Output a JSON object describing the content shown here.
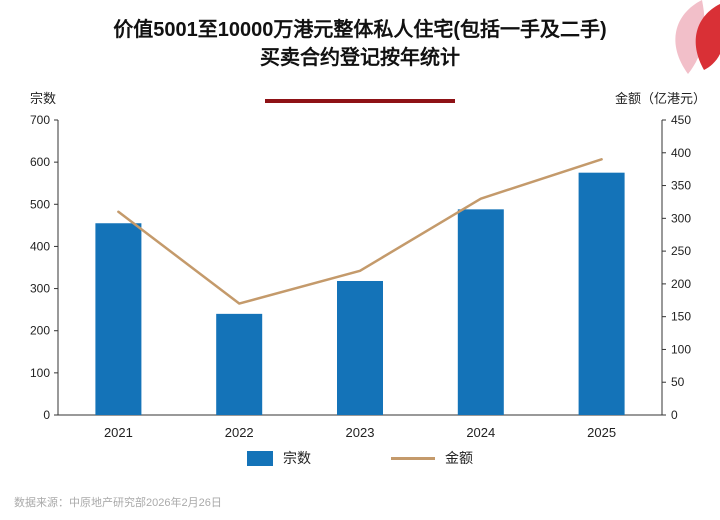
{
  "title": {
    "line1": "价值5001至10000万港元整体私人住宅(包括一手及二手)",
    "line2": "买卖合约登记按年统计"
  },
  "left_axis_unit": "宗数",
  "right_axis_unit": "金额（亿港元）",
  "legend": {
    "bars": "宗数",
    "line": "金额"
  },
  "footer": "数据来源：中原地产研究部2026年2月26日",
  "colors": {
    "bar": "#1473b8",
    "line": "#c49a6b",
    "underline": "#8e1216",
    "axis": "#333333",
    "tick_text": "#222222",
    "footer_text": "#aaaaaa"
  },
  "chart_data": {
    "type": "bar",
    "subtype": "bar+line-combo",
    "categories": [
      "2021",
      "2022",
      "2023",
      "2024",
      "2025"
    ],
    "series": [
      {
        "name": "宗数",
        "type": "bar",
        "axis": "left",
        "values": [
          455,
          240,
          318,
          488,
          575
        ]
      },
      {
        "name": "金额",
        "type": "line",
        "axis": "right",
        "values": [
          310,
          170,
          220,
          330,
          390
        ]
      }
    ],
    "title": "价值5001至10000万港元整体私人住宅(包括一手及二手)买卖合约登记按年统计",
    "xlabel": "",
    "ylabel_left": "宗数",
    "ylabel_right": "金额（亿港元）",
    "left_axis": {
      "min": 0,
      "max": 700,
      "step": 100
    },
    "right_axis": {
      "min": 0,
      "max": 450,
      "step": 50
    },
    "grid": false,
    "legend_position": "bottom"
  }
}
